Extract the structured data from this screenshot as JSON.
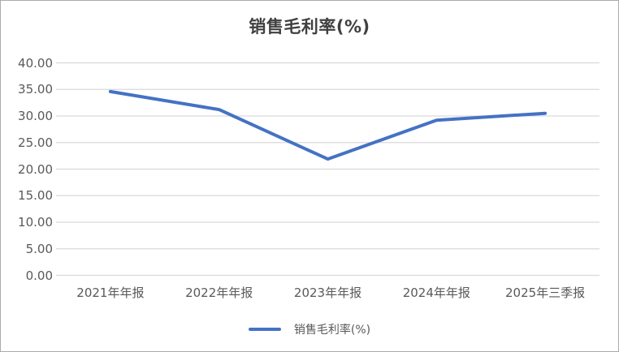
{
  "chart_data": {
    "type": "line",
    "title": "销售毛利率(%)",
    "series_name": "销售毛利率(%)",
    "categories": [
      "2021年年报",
      "2022年年报",
      "2023年年报",
      "2024年年报",
      "2025年三季报"
    ],
    "values": [
      34.6,
      31.2,
      21.9,
      29.2,
      30.5
    ],
    "ylim": [
      0,
      40
    ],
    "y_tick_step": 5,
    "y_tick_labels": [
      "40.00",
      "35.00",
      "30.00",
      "25.00",
      "20.00",
      "15.00",
      "10.00",
      "5.00",
      "0.00"
    ],
    "grid": true,
    "legend_position": "bottom",
    "colors": {
      "line": "#4472C4",
      "grid": "#D9D9D9",
      "axis_text": "#595959",
      "title_text": "#404040",
      "background": "#FFFFFF",
      "frame_border": "#ABABAB"
    }
  }
}
